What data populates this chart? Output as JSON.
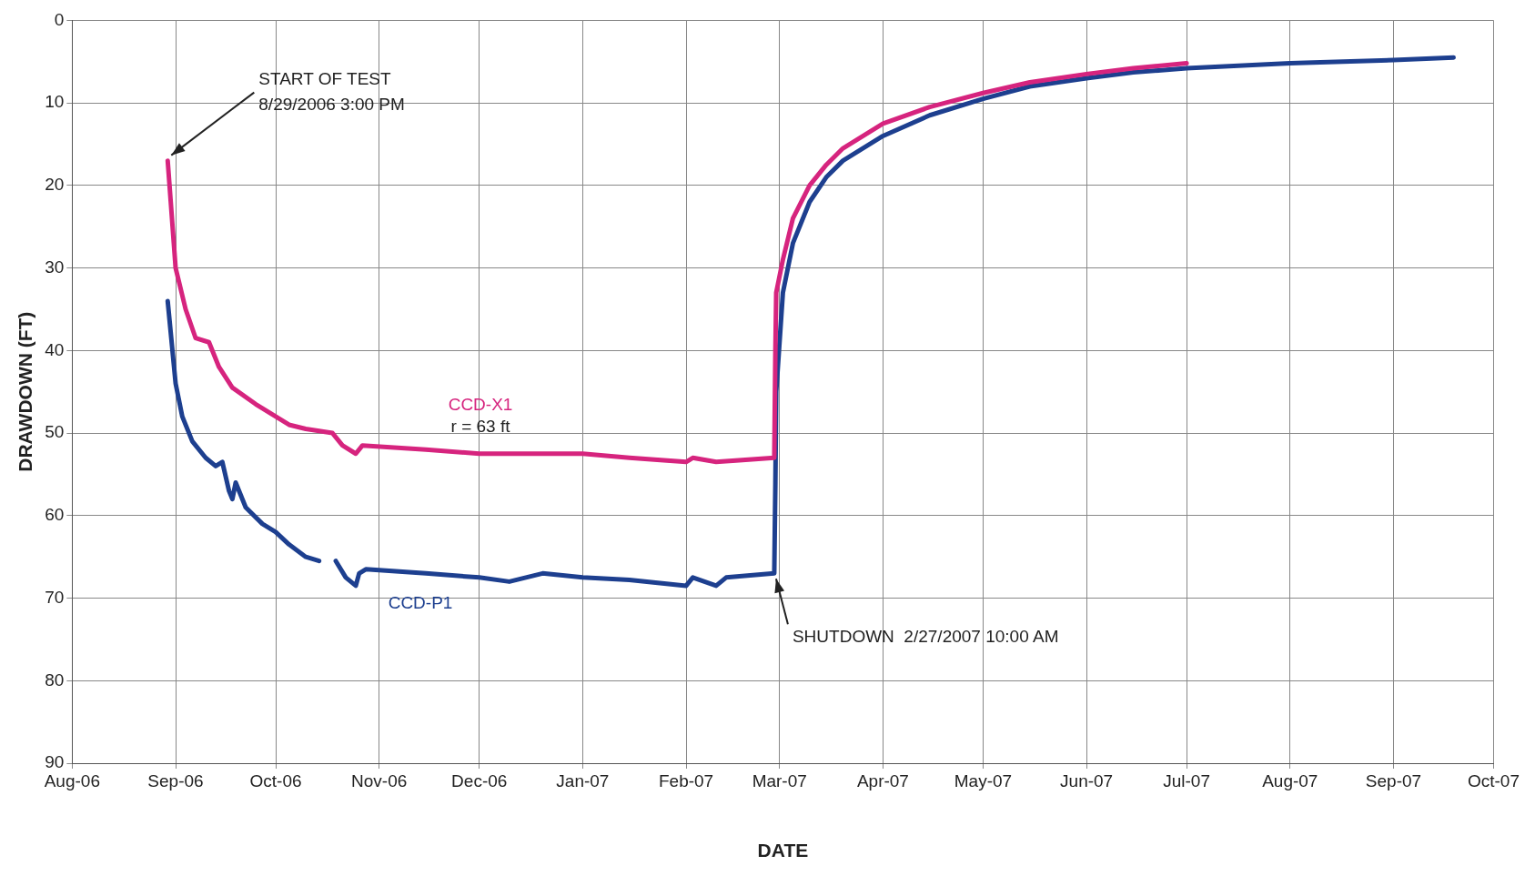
{
  "chart_data": {
    "type": "line",
    "xlabel": "DATE",
    "ylabel": "DRAWDOWN (FT)",
    "xlim": [
      "2006-08-01",
      "2007-10-01"
    ],
    "xticks": [
      {
        "value": "2006-08-01",
        "label": "Aug-06"
      },
      {
        "value": "2006-09-01",
        "label": "Sep-06"
      },
      {
        "value": "2006-10-01",
        "label": "Oct-06"
      },
      {
        "value": "2006-11-01",
        "label": "Nov-06"
      },
      {
        "value": "2006-12-01",
        "label": "Dec-06"
      },
      {
        "value": "2007-01-01",
        "label": "Jan-07"
      },
      {
        "value": "2007-02-01",
        "label": "Feb-07"
      },
      {
        "value": "2007-03-01",
        "label": "Mar-07"
      },
      {
        "value": "2007-04-01",
        "label": "Apr-07"
      },
      {
        "value": "2007-05-01",
        "label": "May-07"
      },
      {
        "value": "2007-06-01",
        "label": "Jun-07"
      },
      {
        "value": "2007-07-01",
        "label": "Jul-07"
      },
      {
        "value": "2007-08-01",
        "label": "Aug-07"
      },
      {
        "value": "2007-09-01",
        "label": "Sep-07"
      },
      {
        "value": "2007-10-01",
        "label": "Oct-07"
      }
    ],
    "ylim": [
      90,
      0
    ],
    "yticks": [
      0,
      10,
      20,
      30,
      40,
      50,
      60,
      70,
      80,
      90
    ],
    "grid": true,
    "legend": false,
    "marker": "none",
    "line_style": "solid",
    "series": [
      {
        "name": "CCD-X1",
        "color": "#d6247e",
        "x": [
          "2006-08-29T15:00",
          "2006-09-01",
          "2006-09-04",
          "2006-09-07",
          "2006-09-11",
          "2006-09-14",
          "2006-09-18",
          "2006-09-25",
          "2006-10-01",
          "2006-10-05",
          "2006-10-10",
          "2006-10-18",
          "2006-10-21",
          "2006-10-25",
          "2006-10-27",
          "2006-11-15",
          "2006-12-01",
          "2006-12-15",
          "2007-01-01",
          "2007-01-15",
          "2007-02-01",
          "2007-02-03",
          "2007-02-10",
          "2007-02-27T10:00",
          "2007-02-27T18:00",
          "2007-02-28",
          "2007-03-02",
          "2007-03-05",
          "2007-03-10",
          "2007-03-15",
          "2007-03-20",
          "2007-04-01",
          "2007-04-15",
          "2007-05-01",
          "2007-05-15",
          "2007-06-01",
          "2007-06-15",
          "2007-07-01"
        ],
        "values": [
          17,
          30,
          35,
          38.5,
          39,
          42,
          44.5,
          46.5,
          48,
          49,
          49.5,
          50,
          51.5,
          52.5,
          51.5,
          52,
          52.5,
          52.5,
          52.5,
          53,
          53.5,
          53,
          53.5,
          53,
          40,
          33,
          29,
          24,
          20,
          17.5,
          15.5,
          12.5,
          10.5,
          8.8,
          7.5,
          6.5,
          5.8,
          5.2
        ]
      },
      {
        "name": "CCD-P1",
        "color": "#1d3f8f",
        "x": [
          "2006-08-29T15:00",
          "2006-09-01",
          "2006-09-03",
          "2006-09-06",
          "2006-09-10",
          "2006-09-13",
          "2006-09-15",
          "2006-09-17",
          "2006-09-18",
          "2006-09-19",
          "2006-09-22",
          "2006-09-27",
          "2006-10-01",
          "2006-10-05",
          "2006-10-10",
          "2006-10-14",
          "2006-10-16",
          "2006-10-19",
          "2006-10-22",
          "2006-10-25",
          "2006-10-26",
          "2006-10-28",
          "2006-11-15",
          "2006-12-01",
          "2006-12-10",
          "2006-12-20",
          "2007-01-01",
          "2007-01-15",
          "2007-02-01",
          "2007-02-03",
          "2007-02-10",
          "2007-02-13",
          "2007-02-27T10:00",
          "2007-02-27T18:00",
          "2007-02-28",
          "2007-03-02",
          "2007-03-05",
          "2007-03-10",
          "2007-03-15",
          "2007-03-20",
          "2007-04-01",
          "2007-04-15",
          "2007-05-01",
          "2007-05-15",
          "2007-06-01",
          "2007-06-15",
          "2007-07-01",
          "2007-08-01",
          "2007-09-01",
          "2007-09-19"
        ],
        "values": [
          34,
          44,
          48,
          51,
          53,
          54,
          53.5,
          57,
          58,
          56,
          59,
          61,
          62,
          63.5,
          65,
          65.5,
          null,
          65.5,
          67.5,
          68.5,
          67,
          66.5,
          67,
          67.5,
          68,
          67,
          67.5,
          67.8,
          68.5,
          67.5,
          68.5,
          67.5,
          67,
          56,
          45,
          33,
          27,
          22,
          19,
          17,
          14,
          11.5,
          9.5,
          8,
          7,
          6.3,
          5.8,
          5.2,
          4.8,
          4.5
        ]
      }
    ],
    "annotations": [
      "r = 63 ft",
      {
        "text": "START OF TEST\n8/29/2006 3:00 PM",
        "x": "2006-08-29T15:00",
        "y": 17
      },
      {
        "text": "SHUTDOWN  2/27/2007 10:00 AM",
        "x": "2007-02-27T10:00",
        "y": 67
      }
    ]
  }
}
